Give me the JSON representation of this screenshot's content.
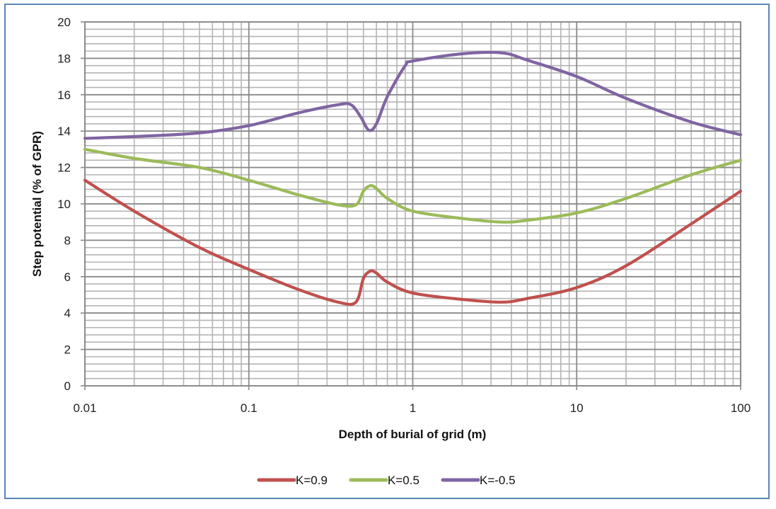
{
  "chart_data": {
    "type": "line",
    "title": "",
    "xlabel": "Depth of burial of grid (m)",
    "ylabel": "Step potential (% of GPR)",
    "xscale": "log",
    "xlim": [
      0.01,
      100
    ],
    "ylim": [
      0,
      20
    ],
    "x_ticks": [
      "0.01",
      "0.1",
      "1",
      "10",
      "100"
    ],
    "y_ticks": [
      "0",
      "2",
      "4",
      "6",
      "8",
      "10",
      "12",
      "14",
      "16",
      "18",
      "20"
    ],
    "grid": {
      "major": true,
      "minor": true
    },
    "legend_position": "bottom",
    "series": [
      {
        "name": "K=0.9",
        "color": "#c0504d",
        "x": [
          0.01,
          0.02,
          0.05,
          0.1,
          0.2,
          0.35,
          0.45,
          0.5,
          0.55,
          0.6,
          0.7,
          1,
          2,
          3.5,
          5,
          10,
          20,
          50,
          100
        ],
        "y": [
          11.3,
          9.6,
          7.6,
          6.4,
          5.3,
          4.6,
          4.6,
          5.9,
          6.3,
          6.2,
          5.7,
          5.1,
          4.75,
          4.6,
          4.8,
          5.4,
          6.6,
          8.9,
          10.7
        ]
      },
      {
        "name": "K=0.5",
        "color": "#9bbb59",
        "x": [
          0.01,
          0.02,
          0.05,
          0.1,
          0.2,
          0.35,
          0.45,
          0.5,
          0.55,
          0.6,
          0.7,
          1,
          2,
          3.5,
          5,
          10,
          20,
          50,
          100
        ],
        "y": [
          13.0,
          12.5,
          12.0,
          11.3,
          10.5,
          9.95,
          9.95,
          10.7,
          11.0,
          10.85,
          10.3,
          9.6,
          9.2,
          9.0,
          9.1,
          9.5,
          10.3,
          11.6,
          12.4
        ]
      },
      {
        "name": "K=-0.5",
        "color": "#8064a2",
        "x": [
          0.01,
          0.02,
          0.05,
          0.1,
          0.2,
          0.35,
          0.42,
          0.48,
          0.54,
          0.6,
          0.7,
          0.9,
          1,
          2,
          3.5,
          5,
          10,
          20,
          50,
          100
        ],
        "y": [
          13.6,
          13.7,
          13.9,
          14.3,
          15.0,
          15.45,
          15.45,
          14.8,
          14.05,
          14.4,
          15.9,
          17.6,
          17.85,
          18.25,
          18.3,
          17.9,
          17.0,
          15.8,
          14.5,
          13.8
        ]
      }
    ]
  },
  "legend": {
    "items": [
      {
        "label": "K=0.9",
        "color": "#c0504d"
      },
      {
        "label": "K=0.5",
        "color": "#9bbb59"
      },
      {
        "label": "K=-0.5",
        "color": "#8064a2"
      }
    ]
  }
}
